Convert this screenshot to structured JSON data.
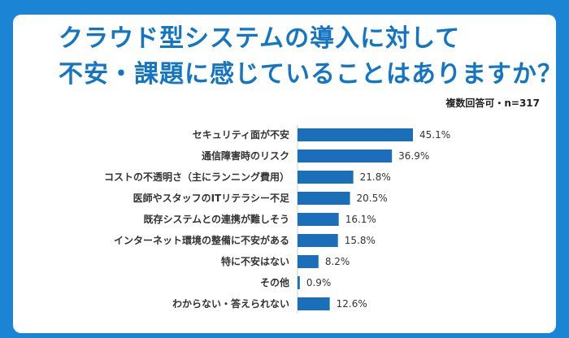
{
  "title_line1": "クラウド型システムの導入に対して",
  "title_line2": "不安・課題に感じていることはありますか？",
  "note": "複数回答可・n=317",
  "colors": {
    "background": "#1b84d4",
    "title": "#1476c2",
    "bar": "#1b6fb8"
  },
  "chart_data": {
    "type": "bar",
    "orientation": "horizontal",
    "unit": "%",
    "categories": [
      "セキュリティ面が不安",
      "通信障害時のリスク",
      "コストの不透明さ（主にランニング費用）",
      "医師やスタッフのITリテラシー不足",
      "既存システムとの連携が難しそう",
      "インターネット環境の整備に不安がある",
      "特に不安はない",
      "その他",
      "わからない・答えられない"
    ],
    "values": [
      45.1,
      36.9,
      21.8,
      20.5,
      16.1,
      15.8,
      8.2,
      0.9,
      12.6
    ],
    "value_labels": [
      "45.1%",
      "36.9%",
      "21.8%",
      "20.5%",
      "16.1%",
      "15.8%",
      "8.2%",
      "0.9%",
      "12.6%"
    ],
    "xlim": [
      0,
      50
    ]
  }
}
